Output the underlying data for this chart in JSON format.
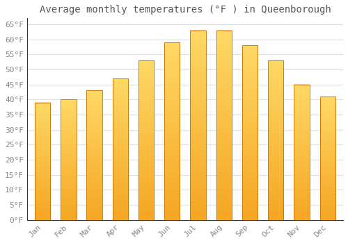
{
  "title": "Average monthly temperatures (°F ) in Queenborough",
  "months": [
    "Jan",
    "Feb",
    "Mar",
    "Apr",
    "May",
    "Jun",
    "Jul",
    "Aug",
    "Sep",
    "Oct",
    "Nov",
    "Dec"
  ],
  "values": [
    39,
    40,
    43,
    47,
    53,
    59,
    63,
    63,
    58,
    53,
    45,
    41
  ],
  "bar_color_top": "#FFD966",
  "bar_color_bottom": "#F5A623",
  "bar_edge_color": "#C87000",
  "background_color": "#FFFFFF",
  "plot_bg_color": "#FFFFFF",
  "grid_color": "#E0E0E0",
  "ylim": [
    0,
    67
  ],
  "yticks": [
    0,
    5,
    10,
    15,
    20,
    25,
    30,
    35,
    40,
    45,
    50,
    55,
    60,
    65
  ],
  "ytick_labels": [
    "0°F",
    "5°F",
    "10°F",
    "15°F",
    "20°F",
    "25°F",
    "30°F",
    "35°F",
    "40°F",
    "45°F",
    "50°F",
    "55°F",
    "60°F",
    "65°F"
  ],
  "title_fontsize": 10,
  "tick_fontsize": 8,
  "tick_font_color": "#888888",
  "title_font_color": "#555555",
  "bar_width": 0.6
}
